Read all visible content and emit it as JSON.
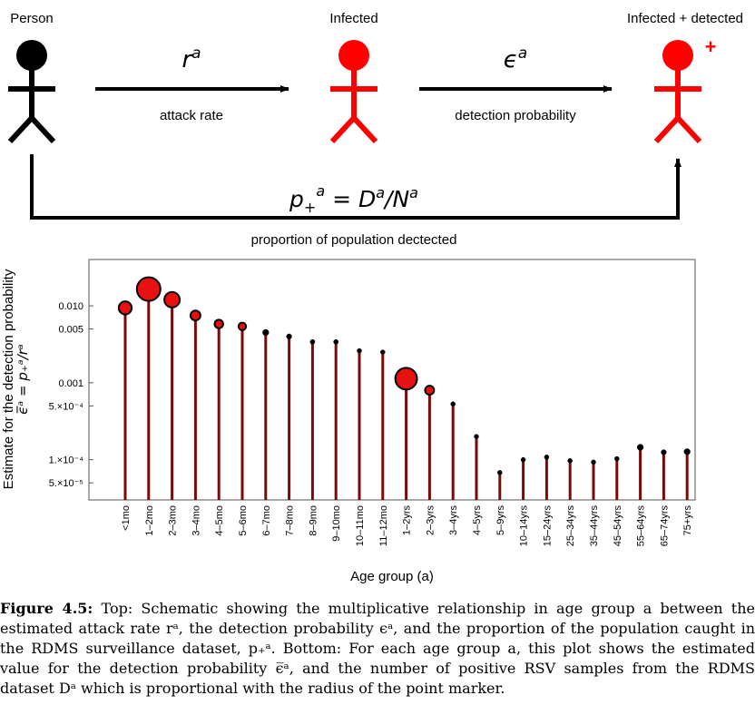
{
  "schematic": {
    "nodes": [
      {
        "label": "Person",
        "color": "#000000"
      },
      {
        "label": "Infected",
        "color": "#ff0000"
      },
      {
        "label": "Infected + detected",
        "color": "#ff0000",
        "badge": "+"
      }
    ],
    "arrow1": {
      "symbol": "r",
      "superscript": "a",
      "caption": "attack rate"
    },
    "arrow2": {
      "symbol": "ϵ",
      "superscript": "a",
      "caption": "detection probability"
    },
    "bottom_arrow": {
      "formula_parts": {
        "p": "p",
        "sub": "+",
        "sup": "a",
        "eq": " = D",
        "sup2": "a",
        "slash": "/N",
        "sup3": "a"
      },
      "caption": "proportion of population dectected"
    }
  },
  "chart_data": {
    "type": "scatter",
    "subtype": "lollipop",
    "scale_y": "log",
    "ylim": [
      3e-05,
      0.04
    ],
    "ylabel_line1": "Estimate for the detection probability",
    "ylabel_line2": "ϵ̅ᵃ = p₊ᵃ/rᵃ",
    "xlabel": "Age group (a)",
    "yticks": [
      {
        "value": 0.01,
        "label": "0.010"
      },
      {
        "value": 0.005,
        "label": "0.005"
      },
      {
        "value": 0.001,
        "label": "0.001"
      },
      {
        "value": 0.0005,
        "label": "5.×10⁻⁴"
      },
      {
        "value": 0.0001,
        "label": "1.×10⁻⁴"
      },
      {
        "value": 5e-05,
        "label": "5.×10⁻⁵"
      }
    ],
    "colors": {
      "stem": "#7a0a0a",
      "marker_fill": "#e81010",
      "marker_edge": "#000000"
    },
    "points": [
      {
        "group": "<1mo",
        "value": 0.0094,
        "size": 0.55
      },
      {
        "group": "1–2mo",
        "value": 0.0165,
        "size": 1.0
      },
      {
        "group": "2–3mo",
        "value": 0.012,
        "size": 0.65
      },
      {
        "group": "3–4mo",
        "value": 0.0075,
        "size": 0.42
      },
      {
        "group": "4–5mo",
        "value": 0.0058,
        "size": 0.36
      },
      {
        "group": "5–6mo",
        "value": 0.0054,
        "size": 0.32
      },
      {
        "group": "6–7mo",
        "value": 0.0045,
        "size": 0.26
      },
      {
        "group": "7–8mo",
        "value": 0.004,
        "size": 0.22
      },
      {
        "group": "8–9mo",
        "value": 0.0034,
        "size": 0.2
      },
      {
        "group": "9–10mo",
        "value": 0.0034,
        "size": 0.2
      },
      {
        "group": "10–11mo",
        "value": 0.0026,
        "size": 0.17
      },
      {
        "group": "11–12mo",
        "value": 0.0025,
        "size": 0.16
      },
      {
        "group": "1–2yrs",
        "value": 0.00113,
        "size": 0.92
      },
      {
        "group": "2–3yrs",
        "value": 0.0008,
        "size": 0.38
      },
      {
        "group": "3–4yrs",
        "value": 0.00053,
        "size": 0.18
      },
      {
        "group": "4–5yrs",
        "value": 0.0002,
        "size": 0.12
      },
      {
        "group": "5–9yrs",
        "value": 6.8e-05,
        "size": 0.12
      },
      {
        "group": "10–14yrs",
        "value": 0.0001,
        "size": 0.12
      },
      {
        "group": "15–24yrs",
        "value": 0.000108,
        "size": 0.16
      },
      {
        "group": "25–34yrs",
        "value": 9.7e-05,
        "size": 0.16
      },
      {
        "group": "35–44yrs",
        "value": 9.3e-05,
        "size": 0.16
      },
      {
        "group": "45–54yrs",
        "value": 0.000103,
        "size": 0.16
      },
      {
        "group": "55–64yrs",
        "value": 0.000145,
        "size": 0.26
      },
      {
        "group": "65–74yrs",
        "value": 0.000125,
        "size": 0.22
      },
      {
        "group": "75+yrs",
        "value": 0.000127,
        "size": 0.26
      }
    ]
  },
  "caption": {
    "lead": "Figure 4.5:",
    "text": " Top: Schematic showing the multiplicative relationship in age group a between the estimated attack rate rᵃ, the detection probability ϵᵃ, and the proportion of the population caught in the RDMS surveillance dataset, p₊ᵃ. Bottom: For each age group a, this plot shows the estimated value for the detection probability ϵ̅ᵃ, and the number of positive RSV samples from the RDMS dataset Dᵃ which is proportional with the radius of the point marker."
  }
}
